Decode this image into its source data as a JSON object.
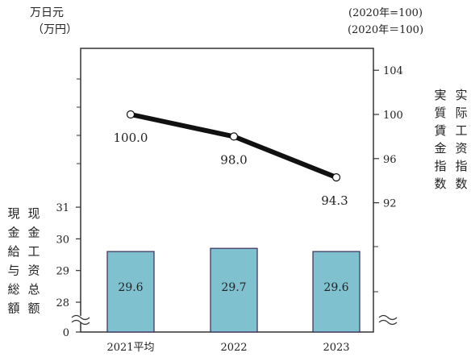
{
  "chart_data": {
    "type": "bar+line",
    "categories": [
      "2021平均",
      "2022",
      "2023"
    ],
    "bar_series": {
      "values": [
        29.6,
        29.7,
        29.6
      ],
      "data_labels": [
        "29.6",
        "29.7",
        "29.6"
      ],
      "color": "#7fc1cf",
      "edge_color": "#3a2a5a",
      "axis_ticks": [
        "0",
        "28",
        "29",
        "30",
        "31"
      ],
      "ylim": [
        27.6,
        33.8
      ],
      "axis_break": true
    },
    "line_series": {
      "values": [
        100.0,
        98.0,
        94.3
      ],
      "data_labels": [
        "100.0",
        "98.0",
        "94.3"
      ],
      "color": "#111111",
      "axis_ticks": [
        "92",
        "96",
        "100",
        "104"
      ],
      "ylim": [
        84,
        108
      ],
      "axis_break": true
    },
    "left_unit": {
      "line1": "万日元",
      "line2": "（万円）"
    },
    "right_unit": {
      "line1": "(2020年=100)",
      "line2": "(2020年＝100)"
    },
    "left_axis_label": {
      "col_outer": "現金給与総額",
      "col_inner": "现金工资总额"
    },
    "right_axis_label": {
      "col_inner": "実質賃金指数",
      "col_outer": "实际工资指数"
    },
    "grid": false
  }
}
